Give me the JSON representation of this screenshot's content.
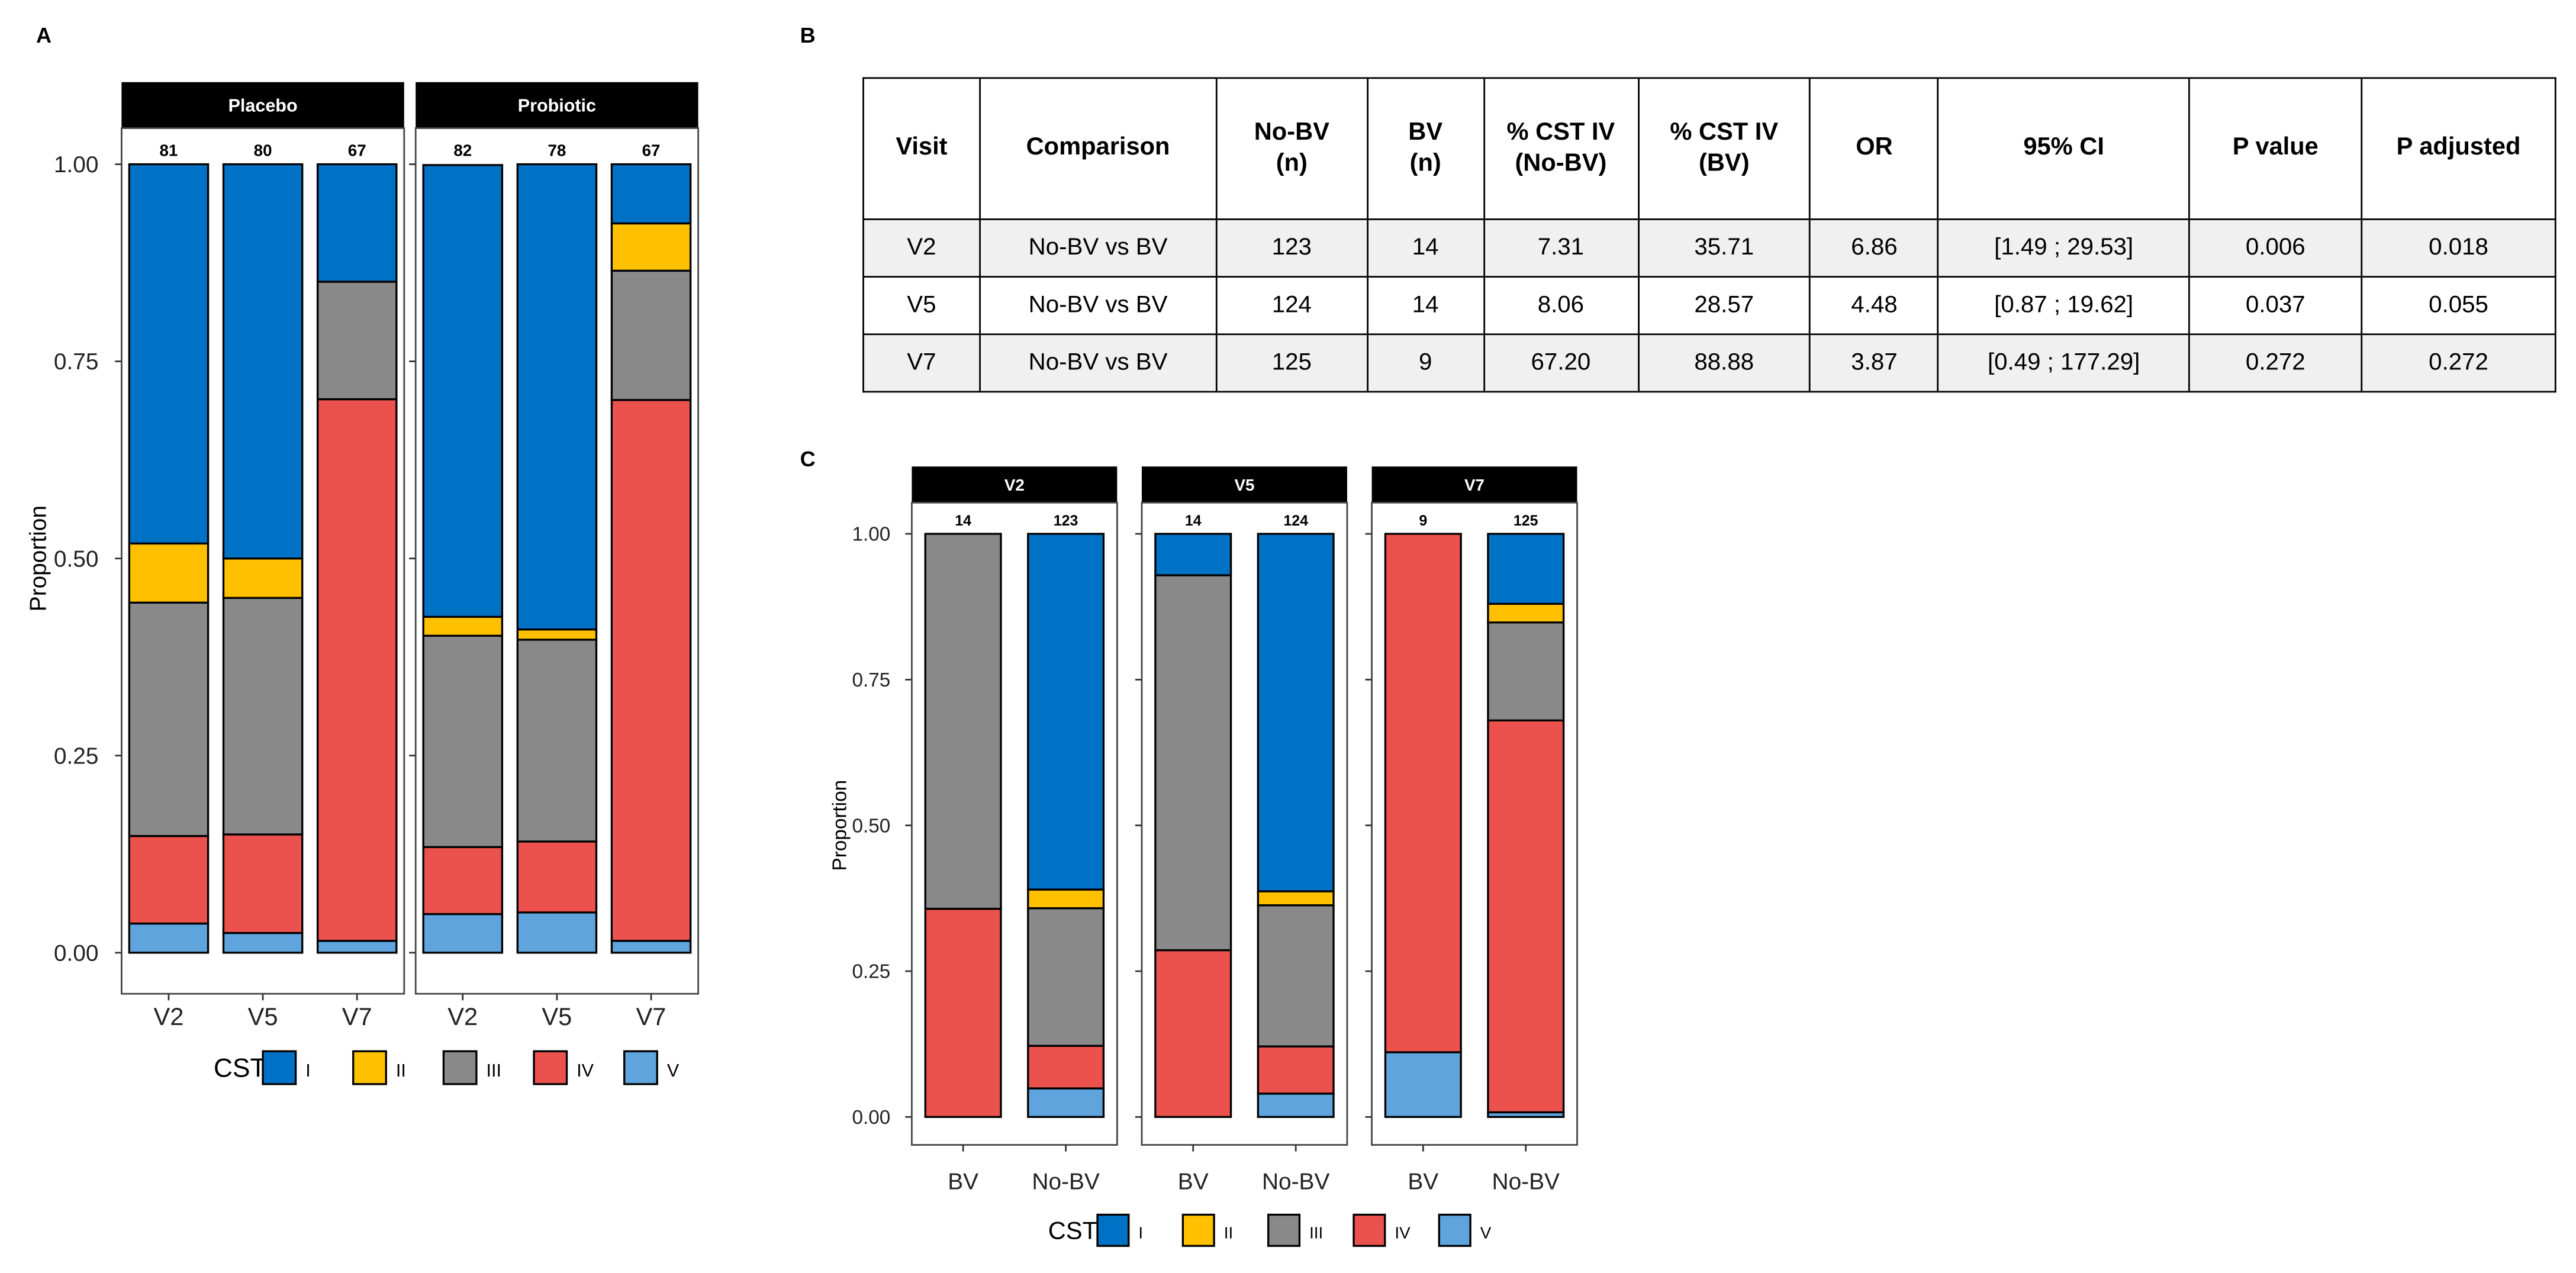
{
  "panel_labels": {
    "a": "A",
    "b": "B",
    "c": "C"
  },
  "colors": {
    "I": "#0072c6",
    "II": "#ffc000",
    "III": "#898989",
    "IV": "#eb524e",
    "V": "#5fa4dc"
  },
  "table": {
    "headers": [
      "Visit",
      "Comparison",
      "No-BV\n(n)",
      "BV\n(n)",
      "% CST IV\n(No-BV)",
      "% CST IV\n(BV)",
      "OR",
      "95% CI",
      "P value",
      "P adjusted"
    ],
    "rows": [
      [
        "V2",
        "No-BV vs BV",
        "123",
        "14",
        "7.31",
        "35.71",
        "6.86",
        "[1.49 ; 29.53]",
        "0.006",
        "0.018"
      ],
      [
        "V5",
        "No-BV vs BV",
        "124",
        "14",
        "8.06",
        "28.57",
        "4.48",
        "[0.87 ; 19.62]",
        "0.037",
        "0.055"
      ],
      [
        "V7",
        "No-BV vs BV",
        "125",
        "9",
        "67.20",
        "88.88",
        "3.87",
        "[0.49 ; 177.29]",
        "0.272",
        "0.272"
      ]
    ]
  },
  "chart_data": [
    {
      "type": "bar",
      "stacked": true,
      "title": "",
      "ylabel": "Proportion",
      "xlabel": "",
      "ylim": [
        0,
        1
      ],
      "yticks": [
        "0.00",
        "0.25",
        "0.50",
        "0.75",
        "1.00"
      ],
      "legend": {
        "title": "CST",
        "entries": [
          "I",
          "II",
          "III",
          "IV",
          "V"
        ],
        "placement": "bottom"
      },
      "facets": [
        {
          "name": "Placebo",
          "categories": [
            "V2",
            "V5",
            "V7"
          ],
          "n": [
            "81",
            "80",
            "67"
          ],
          "series": {
            "I": [
              0.481,
              0.5,
              0.149
            ],
            "II": [
              0.075,
              0.05,
              0
            ],
            "III": [
              0.296,
              0.3,
              0.149
            ],
            "IV": [
              0.111,
              0.125,
              0.687
            ],
            "V": [
              0.037,
              0.025,
              0.015
            ]
          }
        },
        {
          "name": "Probiotic",
          "categories": [
            "V2",
            "V5",
            "V7"
          ],
          "n": [
            "82",
            "78",
            "67"
          ],
          "series": {
            "I": [
              0.573,
              0.59,
              0.075
            ],
            "II": [
              0.024,
              0.013,
              0.06
            ],
            "III": [
              0.268,
              0.256,
              0.164
            ],
            "IV": [
              0.085,
              0.09,
              0.686
            ],
            "V": [
              0.049,
              0.051,
              0.015
            ]
          }
        }
      ]
    },
    {
      "type": "bar",
      "stacked": true,
      "title": "",
      "ylabel": "Proportion",
      "xlabel": "",
      "ylim": [
        0,
        1
      ],
      "yticks": [
        "0.00",
        "0.25",
        "0.50",
        "0.75",
        "1.00"
      ],
      "legend": {
        "title": "CST",
        "entries": [
          "I",
          "II",
          "III",
          "IV",
          "V"
        ],
        "placement": "bottom"
      },
      "facets": [
        {
          "name": "V2",
          "categories": [
            "BV",
            "No-BV"
          ],
          "n": [
            "14",
            "123"
          ],
          "series": {
            "I": [
              0,
              0.61
            ],
            "II": [
              0,
              0.032
            ],
            "III": [
              0.643,
              0.236
            ],
            "IV": [
              0.357,
              0.073
            ],
            "V": [
              0,
              0.049
            ]
          }
        },
        {
          "name": "V5",
          "categories": [
            "BV",
            "No-BV"
          ],
          "n": [
            "14",
            "124"
          ],
          "series": {
            "I": [
              0.071,
              0.613
            ],
            "II": [
              0,
              0.024
            ],
            "III": [
              0.643,
              0.242
            ],
            "IV": [
              0.286,
              0.081
            ],
            "V": [
              0,
              0.04
            ]
          }
        },
        {
          "name": "V7",
          "categories": [
            "BV",
            "No-BV"
          ],
          "n": [
            "9",
            "125"
          ],
          "series": {
            "I": [
              0,
              0.12
            ],
            "II": [
              0,
              0.032
            ],
            "III": [
              0,
              0.168
            ],
            "IV": [
              0.889,
              0.672
            ],
            "V": [
              0.111,
              0.008
            ]
          }
        }
      ]
    }
  ]
}
